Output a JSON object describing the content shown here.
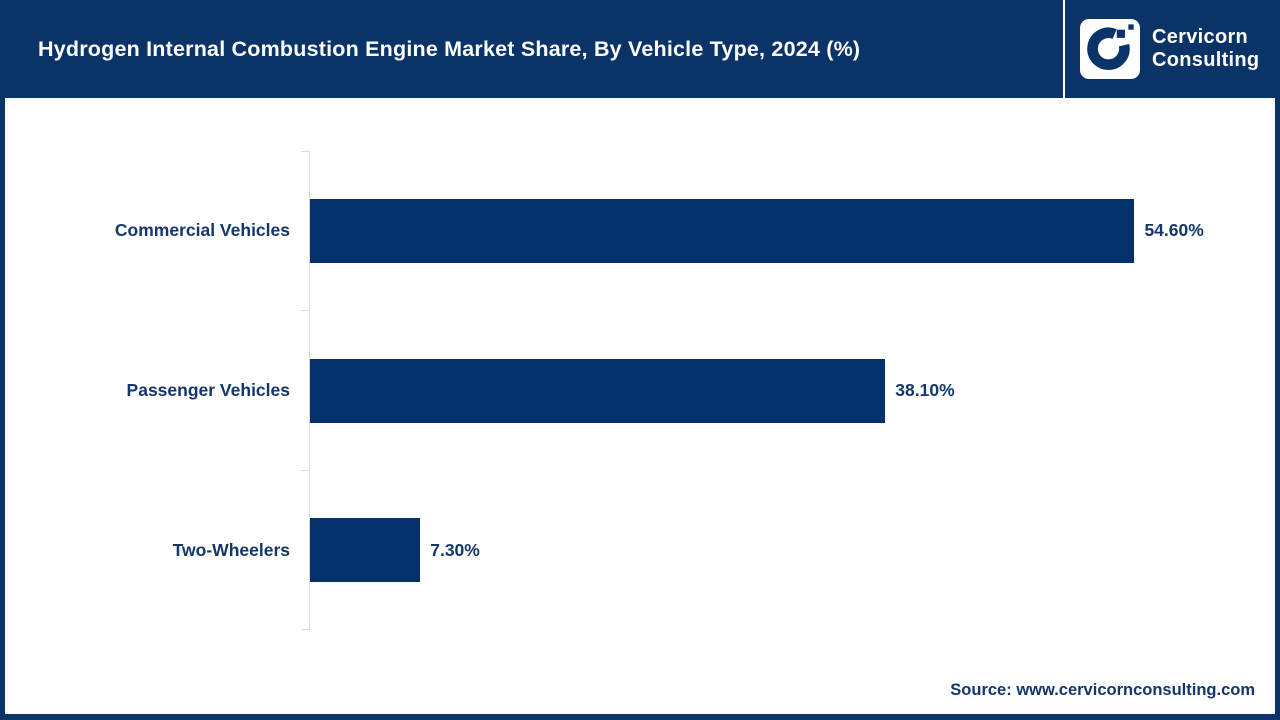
{
  "header": {
    "title": "Hydrogen Internal Combustion Engine Market Share, By Vehicle Type, 2024 (%)",
    "brand": {
      "line1": "Cervicorn",
      "line2": "Consulting"
    }
  },
  "chart_data": {
    "type": "bar",
    "orientation": "horizontal",
    "title": "Hydrogen Internal Combustion Engine Market Share, By Vehicle Type, 2024 (%)",
    "categories": [
      "Commercial Vehicles",
      "Passenger Vehicles",
      "Two-Wheelers"
    ],
    "values": [
      54.6,
      38.1,
      7.3
    ],
    "value_labels": [
      "54.60%",
      "38.10%",
      "7.30%"
    ],
    "xlabel": "",
    "ylabel": "",
    "xlim": [
      0,
      60
    ],
    "grid": false,
    "legend": false,
    "bar_color": "#03316B",
    "axis_color": "#D9D9D9",
    "label_color": "#14376B"
  },
  "footer": {
    "source": "Source: www.cervicornconsulting.com"
  },
  "colors": {
    "header_background": "#0A3368",
    "frame_border": "#0A3368",
    "title_text": "#FFFFFF"
  }
}
